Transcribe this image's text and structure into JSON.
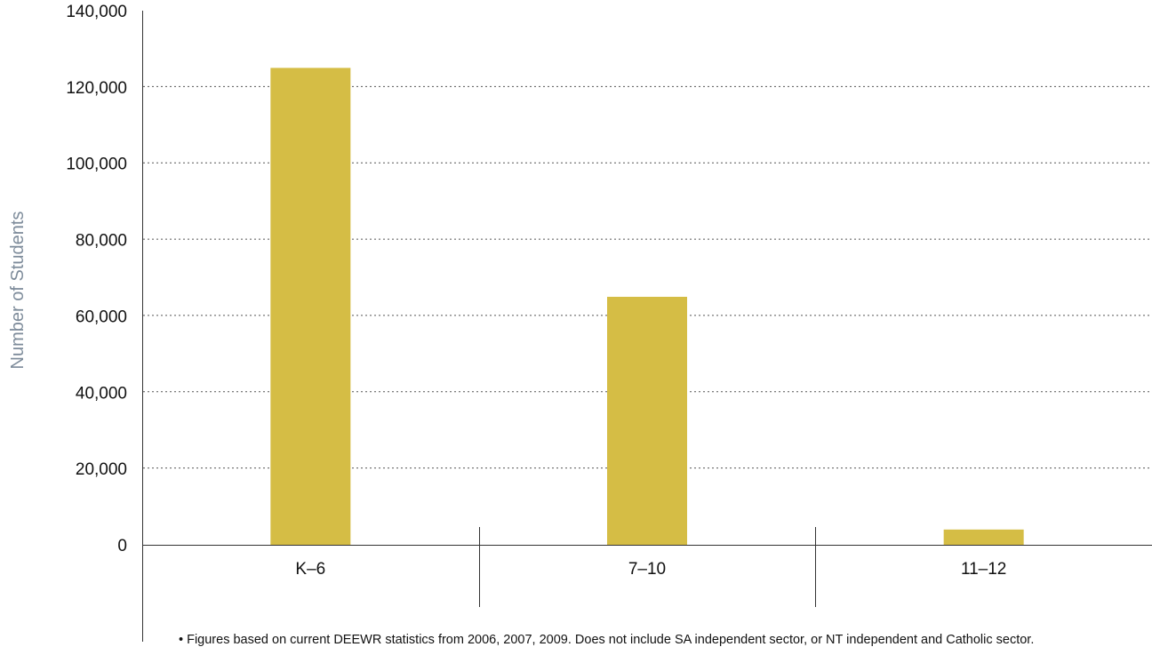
{
  "chart_data": {
    "type": "bar",
    "categories": [
      "K–6",
      "7–10",
      "11–12"
    ],
    "values": [
      125000,
      65000,
      4000
    ],
    "title": "",
    "xlabel": "",
    "ylabel": "Number of Students",
    "ylim": [
      0,
      140000
    ],
    "yticks": [
      0,
      20000,
      40000,
      60000,
      80000,
      100000,
      120000,
      140000
    ],
    "ytick_labels": [
      "0",
      "20,000",
      "40,000",
      "60,000",
      "80,000",
      "100,000",
      "120,000",
      "140,000"
    ],
    "grid": "horizontal dotted",
    "legend": "none",
    "bar_color": "#D5BD45",
    "ylabel_color": "#7D8B9A"
  },
  "footnote": "• Figures based on current DEEWR statistics from 2006, 2007, 2009. Does not include SA independent sector, or NT independent and Catholic sector."
}
